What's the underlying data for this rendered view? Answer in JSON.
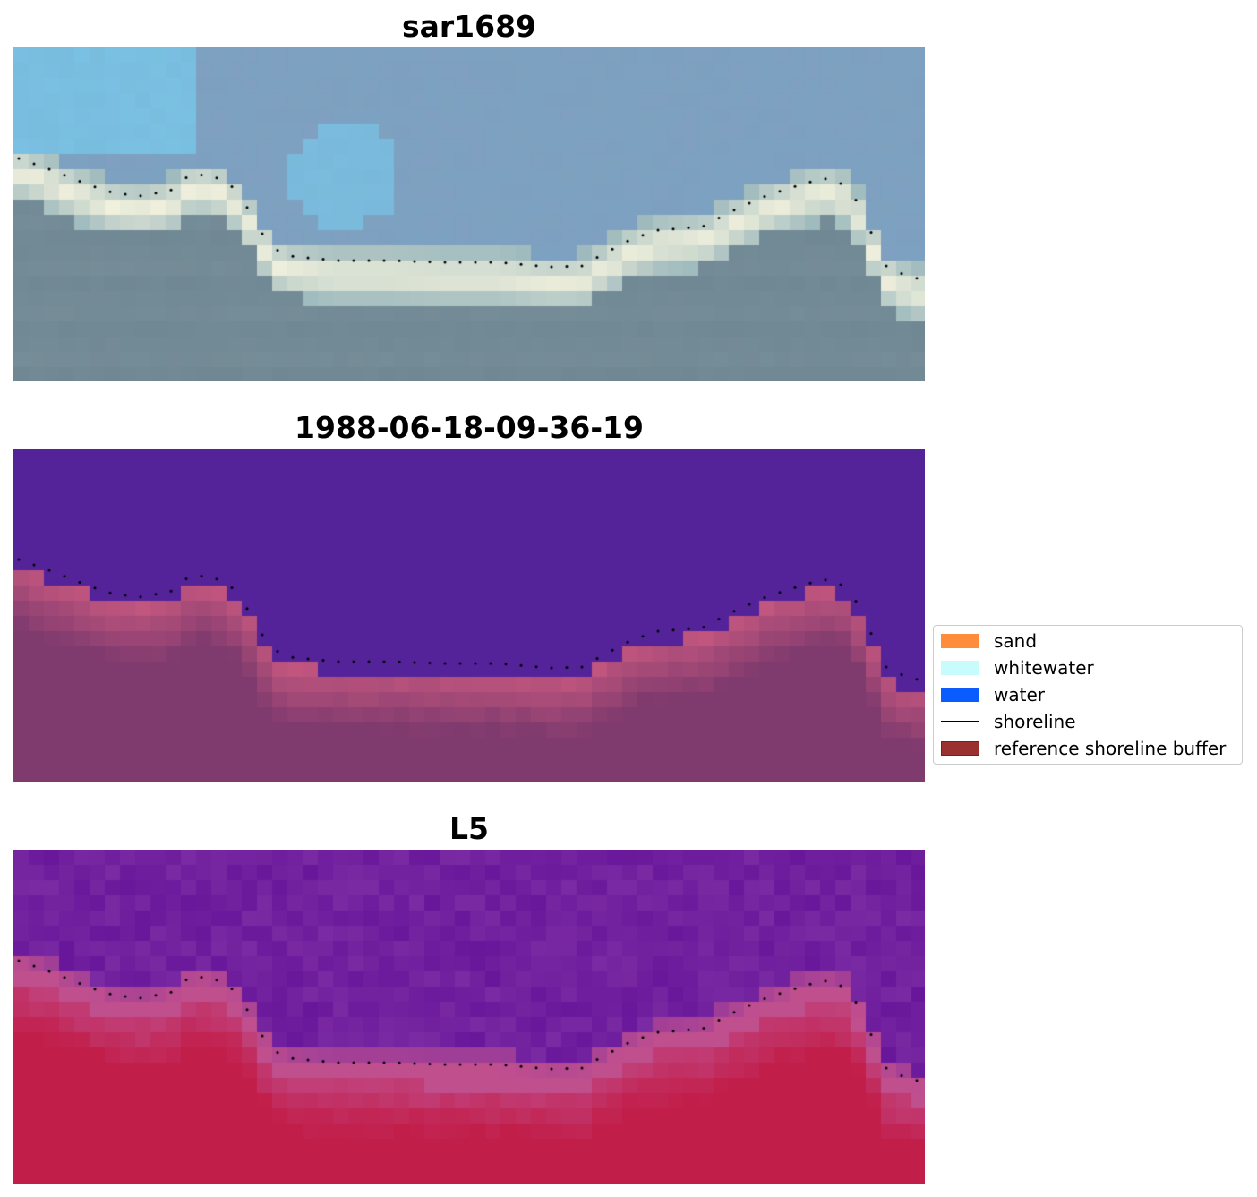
{
  "panels": [
    {
      "title": "sar1689",
      "kind": "sar"
    },
    {
      "title": "1988-06-18-09-36-19",
      "kind": "classification"
    },
    {
      "title": "L5",
      "kind": "index"
    }
  ],
  "legend": {
    "items": [
      {
        "label": "sand",
        "color": "#ff8c3a",
        "type": "patch"
      },
      {
        "label": "whitewater",
        "color": "#c8fbfb",
        "type": "patch"
      },
      {
        "label": "water",
        "color": "#0a5cff",
        "type": "patch"
      },
      {
        "label": "shoreline",
        "color": "#000000",
        "type": "line"
      },
      {
        "label": "reference shoreline buffer",
        "color": "#9a3030",
        "type": "patch"
      }
    ]
  },
  "colors": {
    "sar_sky": "#7fa0c0",
    "sar_band": "#f0f0dc",
    "sar_ground": "#6f8894",
    "class_water": "#54239a",
    "class_buffer": "#c4577f",
    "class_land": "#7f3a6e",
    "index_water": "#7a2aa2",
    "index_shore": "#c04f8e",
    "index_land": "#c21e4a"
  }
}
